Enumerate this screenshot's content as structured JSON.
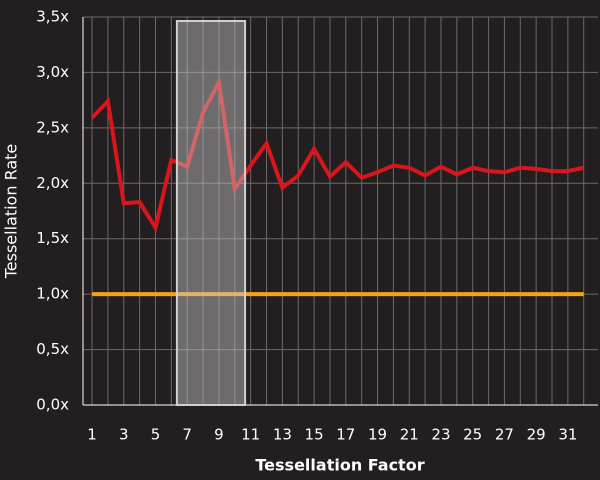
{
  "chart_data": {
    "type": "line",
    "x_label": "Tessellation Factor",
    "y_label": "Tessellation Rate",
    "x": [
      1,
      2,
      3,
      4,
      5,
      6,
      7,
      8,
      9,
      10,
      11,
      12,
      13,
      14,
      15,
      16,
      17,
      18,
      19,
      20,
      21,
      22,
      23,
      24,
      25,
      26,
      27,
      28,
      29,
      30,
      31,
      32
    ],
    "series": [
      {
        "color": "#d8161b",
        "values": [
          2.59,
          2.74,
          1.82,
          1.83,
          1.6,
          2.21,
          2.15,
          2.64,
          2.91,
          1.95,
          2.16,
          2.36,
          1.96,
          2.07,
          2.31,
          2.06,
          2.19,
          2.05,
          2.1,
          2.16,
          2.14,
          2.07,
          2.15,
          2.08,
          2.14,
          2.11,
          2.1,
          2.14,
          2.13,
          2.11,
          2.11,
          2.14
        ]
      },
      {
        "color": "#f5a21b",
        "values": [
          1,
          1,
          1,
          1,
          1,
          1,
          1,
          1,
          1,
          1,
          1,
          1,
          1,
          1,
          1,
          1,
          1,
          1,
          1,
          1,
          1,
          1,
          1,
          1,
          1,
          1,
          1,
          1,
          1,
          1,
          1,
          1
        ]
      }
    ],
    "highlight_x": [
      6.35,
      10.65
    ],
    "xlim": [
      0.43,
      32.9
    ],
    "xticks": [
      1,
      3,
      5,
      7,
      9,
      11,
      13,
      15,
      17,
      19,
      21,
      23,
      25,
      27,
      29,
      31
    ],
    "ylim": [
      0,
      3.5
    ],
    "yticks": [
      {
        "value": 0,
        "label": "0,0x"
      },
      {
        "value": 0.5,
        "label": "0,5x"
      },
      {
        "value": 1,
        "label": "1,0x"
      },
      {
        "value": 1.5,
        "label": "1,5x"
      },
      {
        "value": 2,
        "label": "2,0x"
      },
      {
        "value": 2.5,
        "label": "2,5x"
      },
      {
        "value": 3,
        "label": "3,0x"
      },
      {
        "value": 3.5,
        "label": "3,5x"
      }
    ],
    "grid": true
  }
}
